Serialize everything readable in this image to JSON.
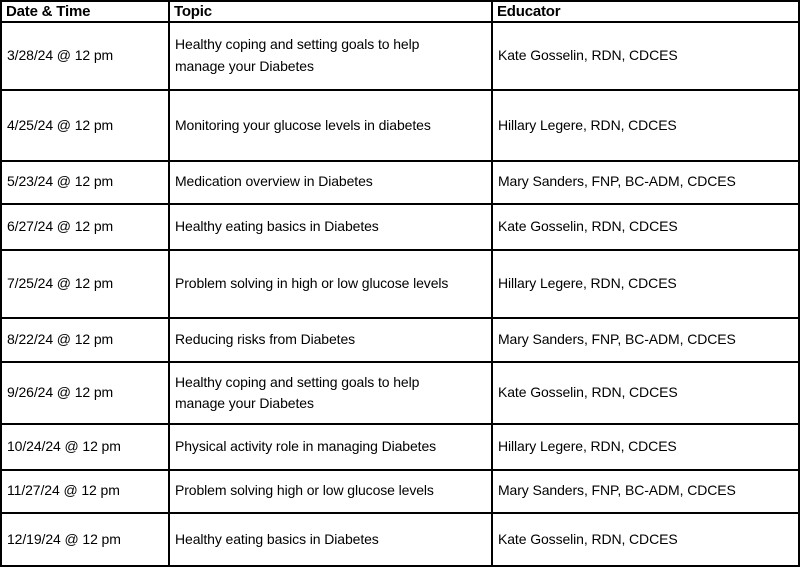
{
  "table": {
    "columns": [
      {
        "key": "datetime",
        "label": "Date & Time"
      },
      {
        "key": "topic",
        "label": "Topic"
      },
      {
        "key": "educator",
        "label": "Educator"
      }
    ],
    "rows": [
      {
        "datetime": "3/28/24 @ 12 pm",
        "topic": "Healthy coping and setting goals to help\nmanage your Diabetes",
        "educator": "Kate Gosselin, RDN, CDCES"
      },
      {
        "datetime": "4/25/24 @ 12 pm",
        "topic": "Monitoring your glucose levels in diabetes",
        "educator": "Hillary Legere, RDN, CDCES"
      },
      {
        "datetime": "5/23/24 @ 12 pm",
        "topic": "Medication overview in Diabetes",
        "educator": "Mary Sanders, FNP, BC-ADM, CDCES"
      },
      {
        "datetime": "6/27/24 @ 12 pm",
        "topic": "Healthy eating basics in Diabetes",
        "educator": "Kate Gosselin, RDN, CDCES"
      },
      {
        "datetime": "7/25/24 @ 12 pm",
        "topic": "Problem solving in high or low glucose levels",
        "educator": "Hillary Legere, RDN, CDCES"
      },
      {
        "datetime": "8/22/24 @ 12 pm",
        "topic": "Reducing risks from Diabetes",
        "educator": "Mary Sanders, FNP, BC-ADM, CDCES"
      },
      {
        "datetime": "9/26/24 @ 12 pm",
        "topic": "Healthy coping and setting goals to help\nmanage your Diabetes",
        "educator": "Kate Gosselin, RDN, CDCES"
      },
      {
        "datetime": "10/24/24 @ 12 pm",
        "topic": "Physical activity role in managing Diabetes",
        "educator": "Hillary Legere, RDN, CDCES"
      },
      {
        "datetime": "11/27/24 @ 12 pm",
        "topic": "Problem solving high or low glucose levels",
        "educator": "Mary Sanders, FNP, BC-ADM, CDCES"
      },
      {
        "datetime": "12/19/24 @ 12 pm",
        "topic": "Healthy eating basics in Diabetes",
        "educator": "Kate Gosselin, RDN, CDCES"
      }
    ]
  }
}
